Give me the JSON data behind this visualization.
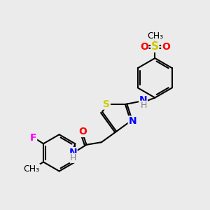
{
  "bg_color": "#ebebeb",
  "bond_color": "#000000",
  "lw": 1.5,
  "atom_colors": {
    "O": "#ff0000",
    "S": "#cccc00",
    "N": "#0000ff",
    "H": "#808080",
    "F": "#ff00ff",
    "C": "#000000"
  },
  "figsize": [
    3.0,
    3.0
  ],
  "dpi": 100
}
